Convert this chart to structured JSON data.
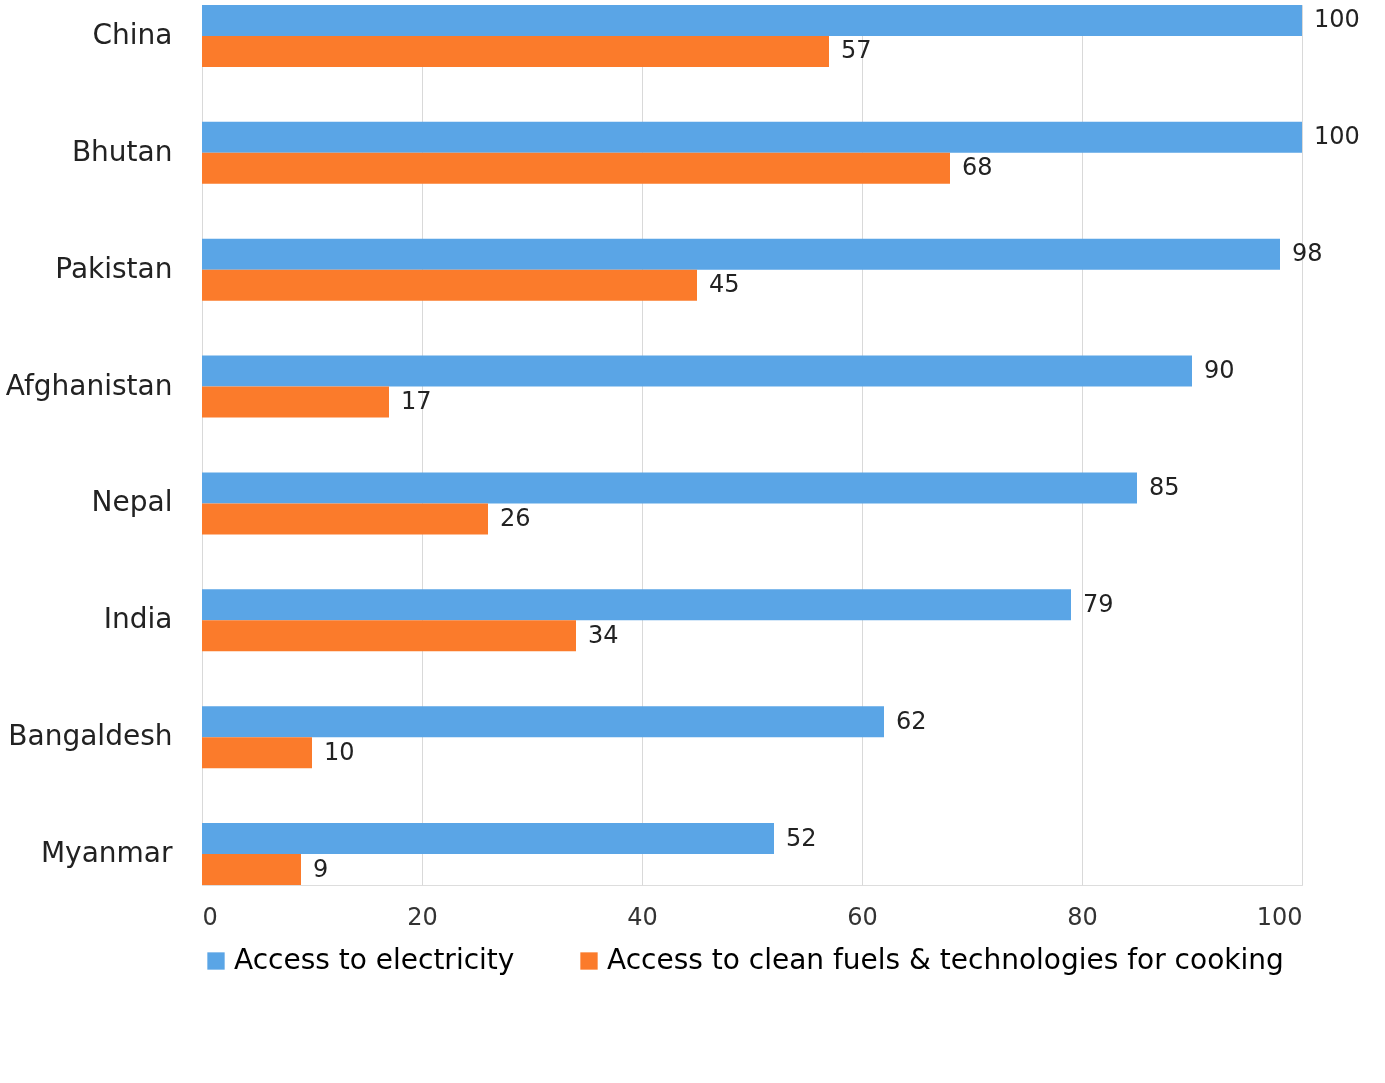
{
  "chart_data": {
    "type": "bar",
    "orientation": "horizontal",
    "categories": [
      "China",
      "Bhutan",
      "Pakistan",
      "Afghanistan",
      "Nepal",
      "India",
      "Bangaldesh",
      "Myanmar"
    ],
    "series": [
      {
        "name": "Access to electricity",
        "color": "#5aa5e6",
        "values": [
          100,
          100,
          98,
          90,
          85,
          79,
          62,
          52
        ]
      },
      {
        "name": "Access to clean fuels & technologies for cooking",
        "color": "#fb7b2b",
        "values": [
          57,
          68,
          45,
          17,
          26,
          34,
          10,
          9
        ]
      }
    ],
    "xlim": [
      0,
      100
    ],
    "xticks": [
      0,
      20,
      40,
      60,
      80,
      100
    ],
    "grid": "x",
    "legend": "bottom",
    "data_labels": true
  }
}
